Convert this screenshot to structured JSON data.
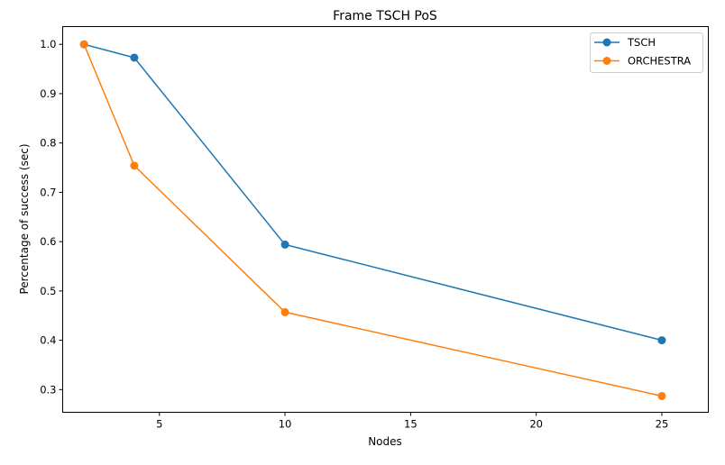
{
  "chart_data": {
    "type": "line",
    "title": "Frame TSCH PoS",
    "xlabel": "Nodes",
    "ylabel": "Percentage of success (sec)",
    "xlim": [
      1.15,
      26.85
    ],
    "ylim": [
      0.254,
      1.036
    ],
    "xticks": [
      5,
      10,
      15,
      20,
      25
    ],
    "yticks": [
      0.3,
      0.4,
      0.5,
      0.6,
      0.7,
      0.8,
      0.9,
      1.0
    ],
    "xtick_labels": [
      "5",
      "10",
      "15",
      "20",
      "25"
    ],
    "ytick_labels": [
      "0.3",
      "0.4",
      "0.5",
      "0.6",
      "0.7",
      "0.8",
      "0.9",
      "1.0"
    ],
    "grid": false,
    "legend_position": "top-right",
    "x": [
      2,
      4,
      10,
      25
    ],
    "series": [
      {
        "name": "TSCH",
        "color": "#1f77b4",
        "values": [
          1.0,
          0.973,
          0.594,
          0.4
        ]
      },
      {
        "name": "ORCHESTRA",
        "color": "#ff7f0e",
        "values": [
          1.0,
          0.754,
          0.457,
          0.287
        ]
      }
    ]
  }
}
